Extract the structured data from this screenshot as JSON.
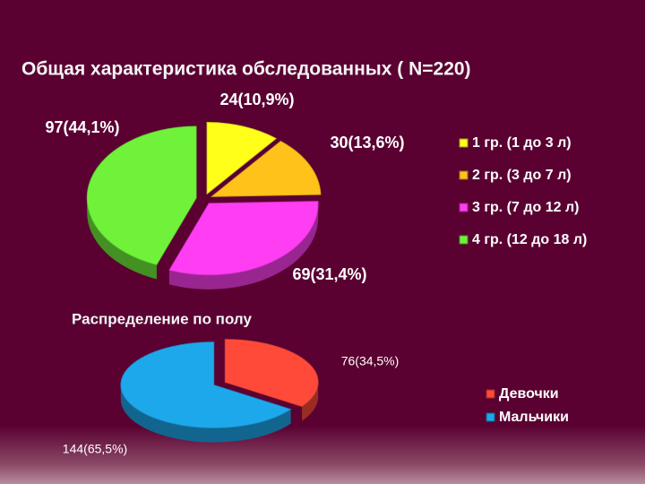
{
  "chart_data": [
    {
      "type": "pie",
      "title": "Общая характеристика обследованных ( N=220)",
      "categories": [
        "1 гр. (1 до 3 л)",
        "2 гр. (3 до 7 л)",
        "3 гр. (7 до 12 л)",
        "4 гр. (12 до 18 л)"
      ],
      "values": [
        24,
        30,
        69,
        97
      ],
      "value_labels": [
        "24(10,9%)",
        "30(13,6%)",
        "69(31,4%)",
        "97(44,1%)"
      ],
      "colors": [
        "#ffff1a",
        "#ffc21a",
        "#ff3df2",
        "#70f23a"
      ],
      "legend": "right"
    },
    {
      "type": "pie",
      "title": "Распределение по полу",
      "categories": [
        "Девочки",
        "Мальчики"
      ],
      "values": [
        76,
        144
      ],
      "value_labels": [
        "76(34,5%)",
        "144(65,5%)"
      ],
      "colors": [
        "#ff4a3a",
        "#1ea8ec"
      ],
      "legend": "right"
    }
  ]
}
